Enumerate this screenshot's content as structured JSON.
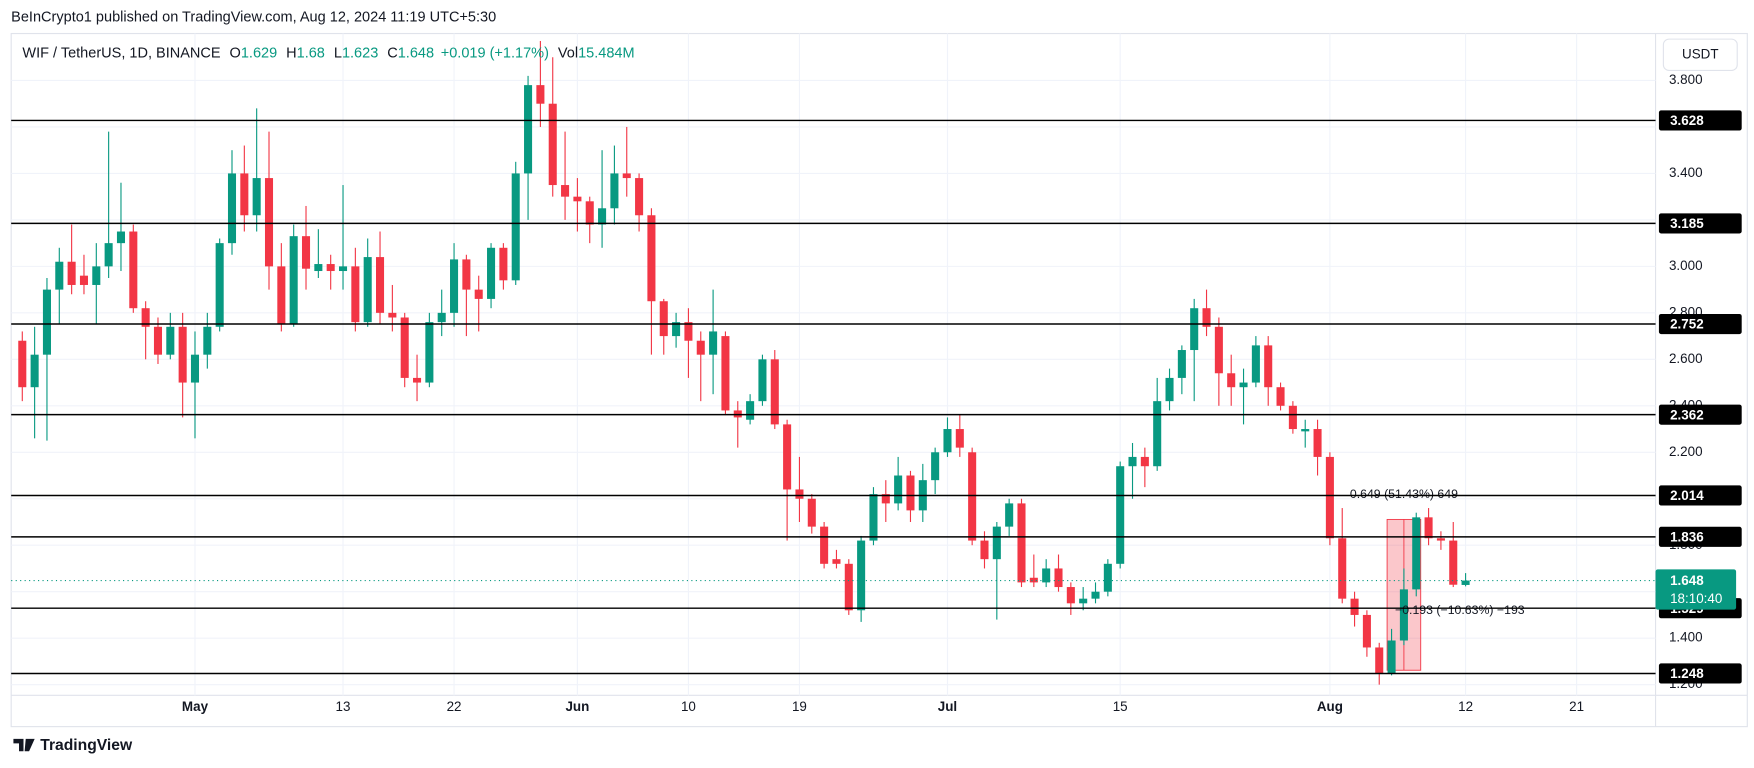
{
  "header": {
    "publisher": "BeInCrypto1 published on TradingView.com, Aug 12, 2024 11:19 UTC+5:30"
  },
  "footer": {
    "brand": "TradingView"
  },
  "chart_data": {
    "type": "candlestick",
    "symbol": "WIF / TetherUS, 1D, BINANCE",
    "legend": {
      "open_label": "O",
      "open": 1.629,
      "high_label": "H",
      "high": 1.68,
      "low_label": "L",
      "low": 1.623,
      "close_label": "C",
      "close": 1.648,
      "change": "+0.019 (+1.17%)",
      "volume_label": "Vol",
      "volume": "15.484M"
    },
    "currency": "USDT",
    "x": [
      0,
      1,
      2,
      3,
      4,
      5,
      6,
      7,
      8,
      9,
      10,
      11,
      12,
      13,
      14,
      15,
      16,
      17,
      18,
      19,
      20,
      21,
      22,
      23,
      24,
      25,
      26,
      27,
      28,
      29,
      30,
      31,
      32,
      33,
      34,
      35,
      36,
      37,
      38,
      39,
      40,
      41,
      42,
      43,
      44,
      45,
      46,
      47,
      48,
      49,
      50,
      51,
      52,
      53,
      54,
      55,
      56,
      57,
      58,
      59,
      60,
      61,
      62,
      63,
      64,
      65,
      66,
      67,
      68,
      69,
      70,
      71,
      72,
      73,
      74,
      75,
      76,
      77,
      78,
      79,
      80,
      81,
      82,
      83,
      84,
      85,
      86,
      87,
      88,
      89,
      90,
      91,
      92,
      93,
      94,
      95,
      96,
      97,
      98,
      99,
      100,
      101,
      102,
      103,
      104,
      105,
      106,
      107,
      108,
      109,
      110,
      111,
      112,
      113,
      114,
      115,
      116,
      117
    ],
    "open": [
      2.68,
      2.48,
      2.62,
      2.9,
      3.02,
      2.96,
      2.92,
      3.0,
      3.1,
      3.15,
      2.82,
      2.74,
      2.62,
      2.74,
      2.5,
      2.62,
      2.74,
      3.1,
      3.4,
      3.22,
      3.38,
      3.0,
      2.75,
      3.13,
      2.98,
      3.01,
      2.98,
      3.0,
      2.76,
      3.04,
      2.8,
      2.78,
      2.52,
      2.5,
      2.76,
      2.8,
      3.03,
      2.9,
      2.86,
      3.08,
      2.94,
      3.4,
      3.78,
      3.7,
      3.35,
      3.3,
      3.28,
      3.18,
      3.25,
      3.4,
      3.38,
      3.22,
      2.85,
      2.7,
      2.76,
      2.68,
      2.62,
      2.7,
      2.38,
      2.34,
      2.42,
      2.6,
      2.32,
      2.04,
      2.0,
      1.88,
      1.74,
      1.72,
      1.52,
      1.82,
      2.02,
      1.98,
      2.1,
      1.95,
      2.08,
      2.2,
      2.3,
      2.2,
      1.82,
      1.74,
      1.88,
      1.98,
      1.66,
      1.64,
      1.7,
      1.62,
      1.55,
      1.57,
      1.6,
      1.72,
      2.14,
      2.18,
      2.14,
      2.42,
      2.52,
      2.64,
      2.82,
      2.74,
      2.54,
      2.48,
      2.5,
      2.66,
      2.48,
      2.4,
      2.29,
      2.3,
      2.18,
      1.83,
      1.57,
      1.5,
      1.36,
      1.25,
      1.39,
      1.61,
      1.92,
      1.83,
      1.82,
      1.629
    ],
    "high": [
      2.72,
      2.74,
      2.95,
      3.08,
      3.18,
      3.05,
      3.1,
      3.58,
      3.36,
      3.18,
      2.85,
      2.78,
      2.8,
      2.8,
      2.72,
      2.8,
      3.12,
      3.5,
      3.52,
      3.68,
      3.58,
      3.1,
      3.18,
      3.26,
      3.16,
      3.05,
      3.35,
      3.08,
      3.12,
      3.15,
      2.92,
      2.8,
      2.62,
      2.8,
      2.9,
      3.1,
      3.05,
      2.96,
      3.1,
      3.1,
      3.45,
      3.82,
      3.97,
      3.9,
      3.58,
      3.38,
      3.3,
      3.5,
      3.52,
      3.6,
      3.4,
      3.25,
      2.86,
      2.8,
      2.82,
      2.72,
      2.9,
      2.72,
      2.42,
      2.45,
      2.62,
      2.64,
      2.34,
      2.18,
      2.02,
      1.9,
      1.78,
      1.74,
      1.84,
      2.05,
      2.08,
      2.18,
      2.12,
      2.15,
      2.22,
      2.35,
      2.36,
      2.22,
      1.86,
      1.9,
      2.0,
      2.0,
      1.76,
      1.74,
      1.76,
      1.64,
      1.62,
      1.64,
      1.74,
      2.16,
      2.24,
      2.22,
      2.52,
      2.56,
      2.66,
      2.86,
      2.9,
      2.78,
      2.62,
      2.56,
      2.7,
      2.7,
      2.5,
      2.42,
      2.34,
      2.34,
      2.2,
      1.96,
      1.6,
      1.52,
      1.38,
      1.44,
      1.7,
      1.94,
      1.96,
      1.86,
      1.9,
      1.68
    ],
    "low": [
      2.42,
      2.26,
      2.25,
      2.75,
      2.88,
      2.88,
      2.75,
      2.95,
      2.98,
      2.8,
      2.6,
      2.58,
      2.6,
      2.35,
      2.26,
      2.56,
      2.72,
      3.05,
      3.15,
      3.15,
      2.9,
      2.72,
      2.74,
      2.9,
      2.95,
      2.9,
      2.9,
      2.72,
      2.74,
      2.75,
      2.72,
      2.48,
      2.42,
      2.48,
      2.7,
      2.74,
      2.7,
      2.72,
      2.82,
      2.9,
      2.92,
      3.2,
      3.6,
      3.3,
      3.2,
      3.15,
      3.1,
      3.08,
      3.18,
      3.3,
      3.15,
      2.62,
      2.62,
      2.65,
      2.52,
      2.42,
      2.45,
      2.36,
      2.22,
      2.32,
      2.4,
      2.3,
      1.82,
      1.9,
      1.85,
      1.7,
      1.7,
      1.5,
      1.47,
      1.8,
      1.9,
      1.95,
      1.9,
      1.9,
      2.02,
      2.18,
      2.18,
      1.8,
      1.7,
      1.48,
      1.84,
      1.62,
      1.62,
      1.62,
      1.6,
      1.5,
      1.52,
      1.55,
      1.58,
      1.7,
      2.0,
      2.05,
      2.12,
      2.38,
      2.45,
      2.42,
      2.7,
      2.4,
      2.4,
      2.32,
      2.48,
      2.4,
      2.38,
      2.28,
      2.22,
      2.1,
      1.8,
      1.55,
      1.45,
      1.32,
      1.2,
      1.24,
      1.37,
      1.58,
      1.8,
      1.78,
      1.62,
      1.623
    ],
    "close": [
      2.48,
      2.62,
      2.9,
      3.02,
      2.92,
      2.92,
      3.0,
      3.1,
      3.15,
      2.82,
      2.74,
      2.62,
      2.74,
      2.5,
      2.62,
      2.74,
      3.1,
      3.4,
      3.22,
      3.38,
      3.0,
      2.75,
      3.13,
      2.99,
      3.01,
      2.98,
      3.0,
      2.76,
      3.04,
      2.8,
      2.78,
      2.52,
      2.5,
      2.76,
      2.8,
      3.03,
      2.9,
      2.86,
      3.08,
      2.94,
      3.4,
      3.78,
      3.7,
      3.35,
      3.3,
      3.28,
      3.18,
      3.25,
      3.4,
      3.38,
      3.22,
      2.85,
      2.7,
      2.76,
      2.68,
      2.62,
      2.72,
      2.38,
      2.35,
      2.42,
      2.6,
      2.32,
      2.04,
      2.0,
      1.88,
      1.72,
      1.72,
      1.52,
      1.82,
      2.02,
      1.98,
      2.1,
      1.95,
      2.08,
      2.2,
      2.3,
      2.22,
      1.82,
      1.74,
      1.88,
      1.98,
      1.64,
      1.64,
      1.7,
      1.62,
      1.55,
      1.57,
      1.6,
      1.72,
      2.14,
      2.18,
      2.14,
      2.42,
      2.52,
      2.64,
      2.82,
      2.74,
      2.54,
      2.48,
      2.5,
      2.66,
      2.48,
      2.4,
      2.3,
      2.3,
      2.18,
      1.83,
      1.57,
      1.5,
      1.36,
      1.25,
      1.39,
      1.61,
      1.92,
      1.83,
      1.82,
      1.63,
      1.648
    ],
    "up_color": "#089981",
    "down_color": "#f23645",
    "xlim": [
      -0.9,
      132.4
    ],
    "ylim": [
      1.154,
      4.002
    ],
    "xticks": [
      {
        "value": 14,
        "label": "May"
      },
      {
        "value": 26,
        "label": "13"
      },
      {
        "value": 35,
        "label": "22"
      },
      {
        "value": 45,
        "label": "Jun"
      },
      {
        "value": 54,
        "label": "10"
      },
      {
        "value": 63,
        "label": "19"
      },
      {
        "value": 75,
        "label": "Jul"
      },
      {
        "value": 89,
        "label": "15"
      },
      {
        "value": 106,
        "label": "Aug"
      },
      {
        "value": 117,
        "label": "12"
      },
      {
        "value": 126,
        "label": "21"
      }
    ],
    "yticks": [
      {
        "value": 1.2,
        "label": "1.200"
      },
      {
        "value": 1.4,
        "label": "1.400"
      },
      {
        "value": 1.6,
        "label": "1.600"
      },
      {
        "value": 1.8,
        "label": "1.800"
      },
      {
        "value": 2.0,
        "label": "2.000"
      },
      {
        "value": 2.2,
        "label": "2.200"
      },
      {
        "value": 2.4,
        "label": "2.400"
      },
      {
        "value": 2.6,
        "label": "2.600"
      },
      {
        "value": 2.8,
        "label": "2.800"
      },
      {
        "value": 3.0,
        "label": "3.000"
      },
      {
        "value": 3.2,
        "label": "3.200"
      },
      {
        "value": 3.4,
        "label": "3.400"
      },
      {
        "value": 3.6,
        "label": "3.600"
      },
      {
        "value": 3.8,
        "label": "3.800"
      }
    ],
    "levels": [
      3.628,
      3.185,
      2.752,
      2.362,
      2.014,
      1.836,
      1.529,
      1.248
    ],
    "level_color": "#000000",
    "last_price": 1.648,
    "countdown": "18:10:40",
    "measure": {
      "low": 1.262,
      "high": 1.911,
      "x_start": 111,
      "x_end": 113,
      "up_label": "0.649 (51.43%) 649",
      "down_label": "−0.193 (−10.63%) −193"
    },
    "grid": true
  }
}
